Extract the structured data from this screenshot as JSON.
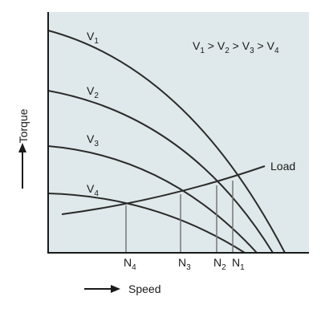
{
  "axes": {
    "y_label": "Torque",
    "x_label": "Speed"
  },
  "load_label": "Load",
  "relation": [
    {
      "letter": "V",
      "sub": "1"
    },
    {
      "op": " > "
    },
    {
      "letter": "V",
      "sub": "2"
    },
    {
      "op": " > "
    },
    {
      "letter": "V",
      "sub": "3"
    },
    {
      "op": " > "
    },
    {
      "letter": "V",
      "sub": "4"
    }
  ],
  "curves": [
    {
      "letter": "V",
      "sub": "1"
    },
    {
      "letter": "V",
      "sub": "2"
    },
    {
      "letter": "V",
      "sub": "3"
    },
    {
      "letter": "V",
      "sub": "4"
    }
  ],
  "speeds": [
    {
      "letter": "N",
      "sub": "4"
    },
    {
      "letter": "N",
      "sub": "3"
    },
    {
      "letter": "N",
      "sub": "2"
    },
    {
      "letter": "N",
      "sub": "1"
    }
  ]
}
